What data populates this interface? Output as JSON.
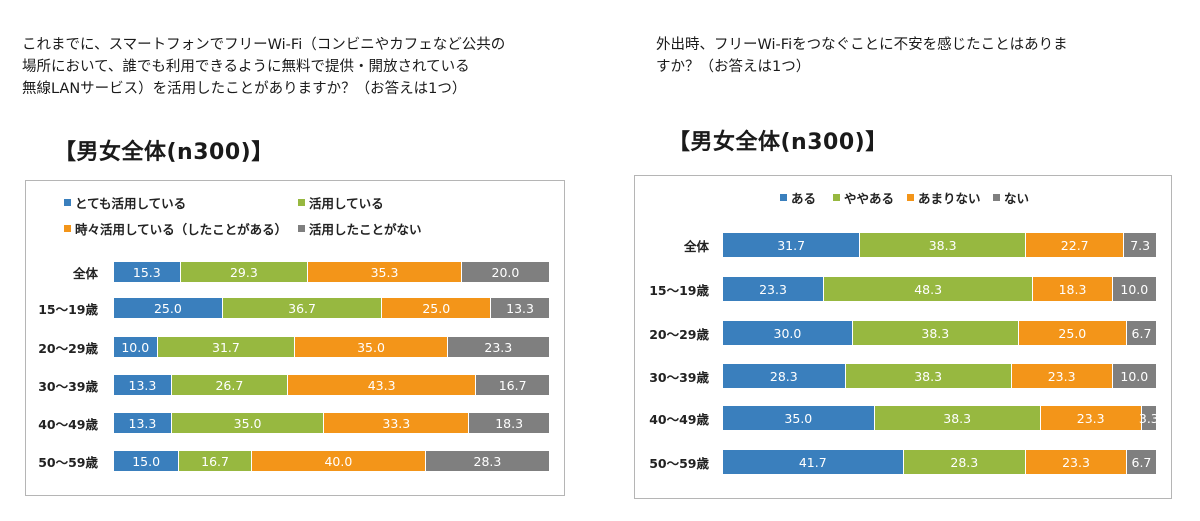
{
  "colors": {
    "blue": "#3a7fbd",
    "green": "#97b840",
    "orange": "#f39519",
    "gray": "#7f7f7f"
  },
  "left": {
    "question": "これまでに、スマートフォンでフリーWi-Fi（コンビニやカフェなど公共の\n場所において、誰でも利用できるように無料で提供・開放されている\n無線LANサービス）を活用したことがありますか？（お答えは1つ）",
    "heading": "【男女全体(n300)】"
  },
  "right": {
    "question": "外出時、フリーWi-Fiをつなぐことに不安を感じたことはありま\nすか？（お答えは1つ）",
    "heading": "【男女全体(n300)】"
  },
  "chart_data": [
    {
      "type": "bar",
      "orientation": "horizontal-stacked-100",
      "categories": [
        "全体",
        "15～19歳",
        "20～29歳",
        "30～39歳",
        "40～49歳",
        "50～59歳"
      ],
      "series": [
        {
          "name": "とても活用している",
          "color": "#3a7fbd",
          "values": [
            15.3,
            25.0,
            10.0,
            13.3,
            13.3,
            15.0
          ]
        },
        {
          "name": "活用している",
          "color": "#97b840",
          "values": [
            29.3,
            36.7,
            31.7,
            26.7,
            35.0,
            16.7
          ]
        },
        {
          "name": "時々活用している（したことがある）",
          "color": "#f39519",
          "values": [
            35.3,
            25.0,
            35.0,
            43.3,
            33.3,
            40.0
          ]
        },
        {
          "name": "活用したことがない",
          "color": "#7f7f7f",
          "values": [
            20.0,
            13.3,
            23.3,
            16.7,
            18.3,
            28.3
          ]
        }
      ],
      "legend": "top",
      "xlim": [
        0,
        100
      ]
    },
    {
      "type": "bar",
      "orientation": "horizontal-stacked-100",
      "categories": [
        "全体",
        "15～19歳",
        "20～29歳",
        "30～39歳",
        "40～49歳",
        "50～59歳"
      ],
      "series": [
        {
          "name": "ある",
          "color": "#3a7fbd",
          "values": [
            31.7,
            23.3,
            30.0,
            28.3,
            35.0,
            41.7
          ]
        },
        {
          "name": "ややある",
          "color": "#97b840",
          "values": [
            38.3,
            48.3,
            38.3,
            38.3,
            38.3,
            28.3
          ]
        },
        {
          "name": "あまりない",
          "color": "#f39519",
          "values": [
            22.7,
            18.3,
            25.0,
            23.3,
            23.3,
            23.3
          ]
        },
        {
          "name": "ない",
          "color": "#7f7f7f",
          "values": [
            7.3,
            10.0,
            6.7,
            10.0,
            3.3,
            6.7
          ]
        }
      ],
      "legend": "top",
      "xlim": [
        0,
        100
      ]
    }
  ]
}
